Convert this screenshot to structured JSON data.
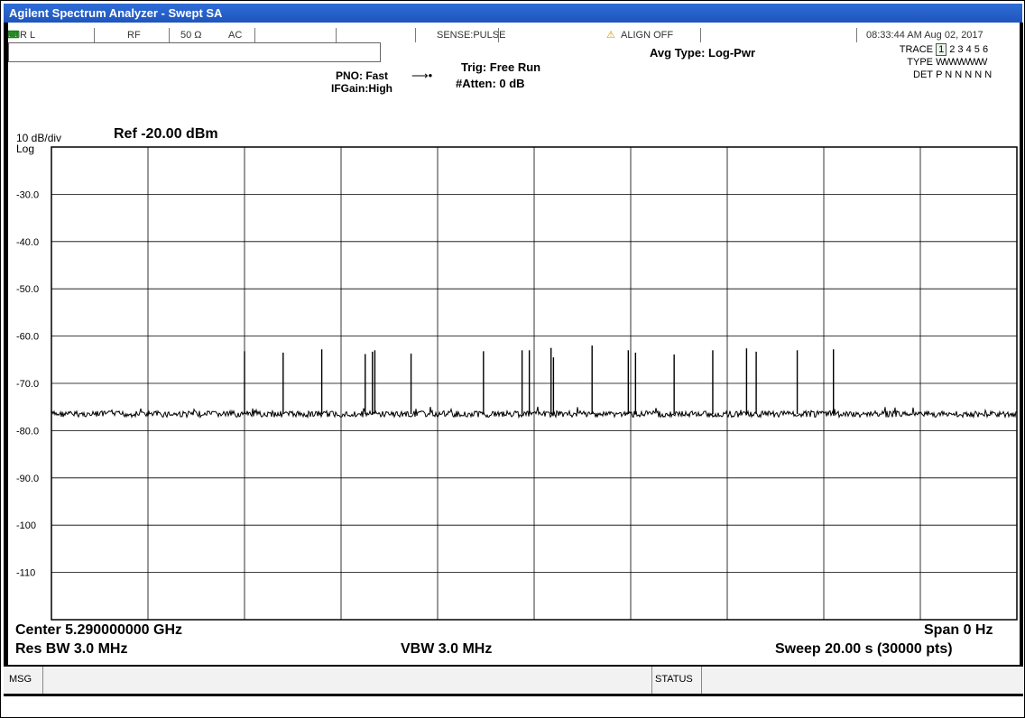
{
  "window": {
    "title": "Agilent Spectrum Analyzer - Swept SA"
  },
  "status_bar": {
    "rl": "R L",
    "rf": "RF",
    "impedance": "50 Ω",
    "coupling": "AC",
    "sense": "SENSE:PULSE",
    "align": "ALIGN OFF",
    "datetime": "08:33:44 AM Aug 02, 2017"
  },
  "settings": {
    "pno": "PNO: Fast",
    "ifgain": "IFGain:High",
    "trig": "Trig: Free Run",
    "atten": "#Atten: 0 dB",
    "avg_type": "Avg Type: Log-Pwr"
  },
  "trace_panel": {
    "trace_label": "TRACE",
    "trace_selected": "1",
    "trace_values": "2 3 4 5 6",
    "type_label": "TYPE",
    "type_values": "WWWWWW",
    "det_label": "DET",
    "det_values": "P N N N N N"
  },
  "display": {
    "scale": "10 dB/div",
    "ref": "Ref -20.00 dBm",
    "scale_type": "Log",
    "center": "Center 5.290000000 GHz",
    "span": "Span 0 Hz",
    "res_bw": "Res BW 3.0 MHz",
    "vbw": "VBW 3.0 MHz",
    "sweep": "Sweep  20.00 s (30000 pts)"
  },
  "bottom_bar": {
    "msg": "MSG",
    "status": "STATUS"
  },
  "chart_data": {
    "type": "line",
    "xlabel": "",
    "ylabel": "",
    "ylim": [
      -120,
      -20
    ],
    "xlim": [
      0,
      20
    ],
    "grid": true,
    "y_ticks": [
      "-30.0",
      "-40.0",
      "-50.0",
      "-60.0",
      "-70.0",
      "-80.0",
      "-90.0",
      "-100",
      "-110"
    ],
    "y_tick_values": [
      -30,
      -40,
      -50,
      -60,
      -70,
      -80,
      -90,
      -100,
      -110
    ],
    "noise_floor_dbm": -76.5,
    "pulse_time_s": [
      4.0,
      4.8,
      5.6,
      6.5,
      6.65,
      6.7,
      7.45,
      8.95,
      9.75,
      9.9,
      10.35,
      10.4,
      11.2,
      11.95,
      12.1,
      12.9,
      13.7,
      14.4,
      14.6,
      15.45,
      16.2
    ],
    "pulse_level_dbm": [
      -63.2,
      -63.5,
      -62.8,
      -63.8,
      -63.3,
      -63.0,
      -63.7,
      -63.2,
      -63.0,
      -63.0,
      -62.5,
      -64.5,
      -62.0,
      -63.0,
      -63.5,
      -63.9,
      -63.0,
      -62.6,
      -63.3,
      -63.0,
      -62.8
    ]
  }
}
